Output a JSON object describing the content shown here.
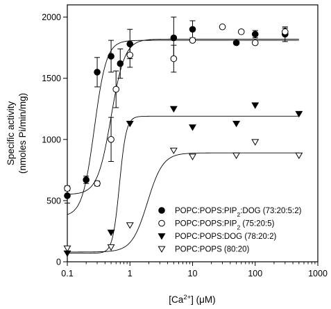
{
  "chart_data": {
    "type": "scatter",
    "title": "",
    "xlabel": "[Ca²⁺] (μM)",
    "ylabel_line1": "Specific activity",
    "ylabel_line2": "(nmoles Pi/min/mg)",
    "xscale": "log",
    "xlim": [
      0.1,
      1000
    ],
    "ylim": [
      0,
      2100
    ],
    "xticks": [
      0.1,
      1,
      10,
      100,
      1000
    ],
    "xtick_labels": [
      "0.1",
      "1",
      "10",
      "100",
      "1000"
    ],
    "yticks": [
      0,
      500,
      1000,
      1500,
      2000
    ],
    "ytick_labels": [
      "0",
      "500",
      "1000",
      "1500",
      "2000"
    ],
    "grid": false,
    "legend_position": "bottom-right",
    "series": [
      {
        "name": "POPC:POPS:PIP₂:DOG (73:20:5:2)",
        "marker": "filled-circle",
        "x": [
          0.1,
          0.2,
          0.3,
          0.5,
          0.7,
          1,
          5,
          10,
          50,
          100,
          300
        ],
        "y": [
          540,
          670,
          1550,
          1680,
          1620,
          1780,
          1830,
          1900,
          1790,
          1860,
          1860
        ],
        "err": [
          60,
          30,
          120,
          130,
          120,
          120,
          170,
          70,
          0,
          30,
          60
        ],
        "fit": {
          "bottom": 550,
          "top": 1820,
          "ec50": 0.5,
          "hill": 4
        }
      },
      {
        "name": "POPC:POPS:PIP₂ (75:20:5)",
        "marker": "open-circle",
        "x": [
          0.1,
          0.3,
          0.5,
          0.6,
          1,
          5,
          10,
          30,
          60,
          100,
          300
        ],
        "y": [
          600,
          640,
          1000,
          1410,
          1690,
          1660,
          1810,
          1920,
          1880,
          1790,
          1880
        ],
        "err": [
          20,
          20,
          180,
          150,
          100,
          110,
          0,
          0,
          0,
          0,
          30
        ],
        "fit": {
          "bottom": 370,
          "top": 1810,
          "ec50": 0.27,
          "hill": 4.5
        }
      },
      {
        "name": "POPC:POPS:DOG (78:20:2)",
        "marker": "filled-triangle-down",
        "x": [
          0.1,
          0.5,
          1,
          5,
          10,
          50,
          100,
          500
        ],
        "y": [
          70,
          240,
          1130,
          1250,
          1100,
          1130,
          1280,
          1210
        ],
        "err": [
          0,
          0,
          0,
          0,
          0,
          0,
          0,
          0
        ],
        "fit": {
          "bottom": 70,
          "top": 1190,
          "ec50": 0.68,
          "hill": 8
        }
      },
      {
        "name": "POPC:POPS (80:20)",
        "marker": "open-triangle-down",
        "x": [
          0.1,
          0.5,
          1,
          5,
          10,
          50,
          100,
          500
        ],
        "y": [
          110,
          120,
          300,
          910,
          860,
          870,
          980,
          870
        ],
        "err": [
          0,
          0,
          0,
          0,
          0,
          0,
          0,
          0
        ],
        "fit": {
          "bottom": 80,
          "top": 890,
          "ec50": 1.9,
          "hill": 3.5
        }
      }
    ],
    "legend": [
      {
        "marker": "filled-circle",
        "base": "POPC:POPS:PIP",
        "sub": "2",
        "rest": ":DOG (73:20:5:2)"
      },
      {
        "marker": "open-circle",
        "base": "POPC:POPS:PIP",
        "sub": "2",
        "rest": " (75:20:5)"
      },
      {
        "marker": "filled-triangle-down",
        "base": "POPC:POPS:DOG (78:20:2)",
        "sub": "",
        "rest": ""
      },
      {
        "marker": "open-triangle-down",
        "base": "POPC:POPS (80:20)",
        "sub": "",
        "rest": ""
      }
    ],
    "xlabel_parts": {
      "pre": "[Ca",
      "sup": "2+",
      "post": "] (μM)"
    }
  }
}
